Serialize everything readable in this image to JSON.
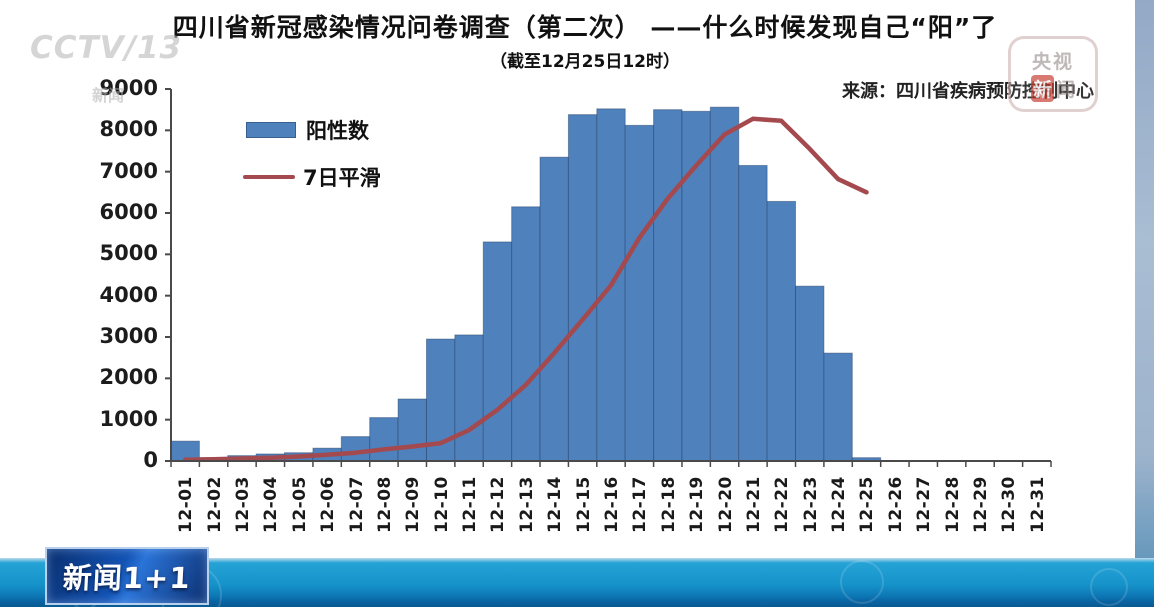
{
  "header": {
    "title": "四川省新冠感染情况问卷调查（第二次） ——什么时候发现自己“阳”了",
    "subtitle": "（截至12月25日12时）",
    "source": "来源：四川省疾病预防控制中心"
  },
  "watermarks": {
    "channel_logo": "CCTV/13",
    "channel_logo_sub": "新闻",
    "app_stamp_row1": "央视",
    "app_stamp_char_red": "新",
    "app_stamp_char_gray": "闻",
    "program_badge": "新闻1+1"
  },
  "legend": [
    {
      "label": "阳性数",
      "type": "bar"
    },
    {
      "label": "7日平滑",
      "type": "line"
    }
  ],
  "chart_data": {
    "type": "bar",
    "title": "四川省新冠感染情况问卷调查（第二次） ——什么时候发现自己“阳”了",
    "xlabel": "",
    "ylabel": "",
    "ylim": [
      0,
      9000
    ],
    "y_ticks": [
      0,
      1000,
      2000,
      3000,
      4000,
      5000,
      6000,
      7000,
      8000,
      9000
    ],
    "grid": false,
    "legend_position": "inside-top-left",
    "categories": [
      "12-01",
      "12-02",
      "12-03",
      "12-04",
      "12-05",
      "12-06",
      "12-07",
      "12-08",
      "12-09",
      "12-10",
      "12-11",
      "12-12",
      "12-13",
      "12-14",
      "12-15",
      "12-16",
      "12-17",
      "12-18",
      "12-19",
      "12-20",
      "12-21",
      "12-22",
      "12-23",
      "12-24",
      "12-25",
      "12-26",
      "12-27",
      "12-28",
      "12-29",
      "12-30",
      "12-31"
    ],
    "series": [
      {
        "name": "阳性数",
        "type": "bar",
        "color": "#4f81bd",
        "values": [
          480,
          80,
          130,
          170,
          200,
          310,
          590,
          1050,
          1500,
          2950,
          3050,
          5300,
          6150,
          7350,
          8380,
          8520,
          8120,
          8500,
          8460,
          8560,
          7150,
          6280,
          4230,
          2610,
          80,
          0,
          0,
          0,
          0,
          0,
          0
        ]
      },
      {
        "name": "7日平滑",
        "type": "line",
        "color": "#a4494e",
        "values": [
          30,
          40,
          60,
          80,
          110,
          150,
          200,
          280,
          350,
          430,
          750,
          1240,
          1840,
          2610,
          3420,
          4250,
          5400,
          6350,
          7150,
          7900,
          8280,
          8230,
          7550,
          6820,
          6500,
          null,
          null,
          null,
          null,
          null,
          null
        ]
      }
    ]
  },
  "colors": {
    "bar": "#4f81bd",
    "line": "#a4494e",
    "axis": "#4a4a4a",
    "bottom_band": "#1592c9",
    "badge_blue": "#1353b4"
  }
}
